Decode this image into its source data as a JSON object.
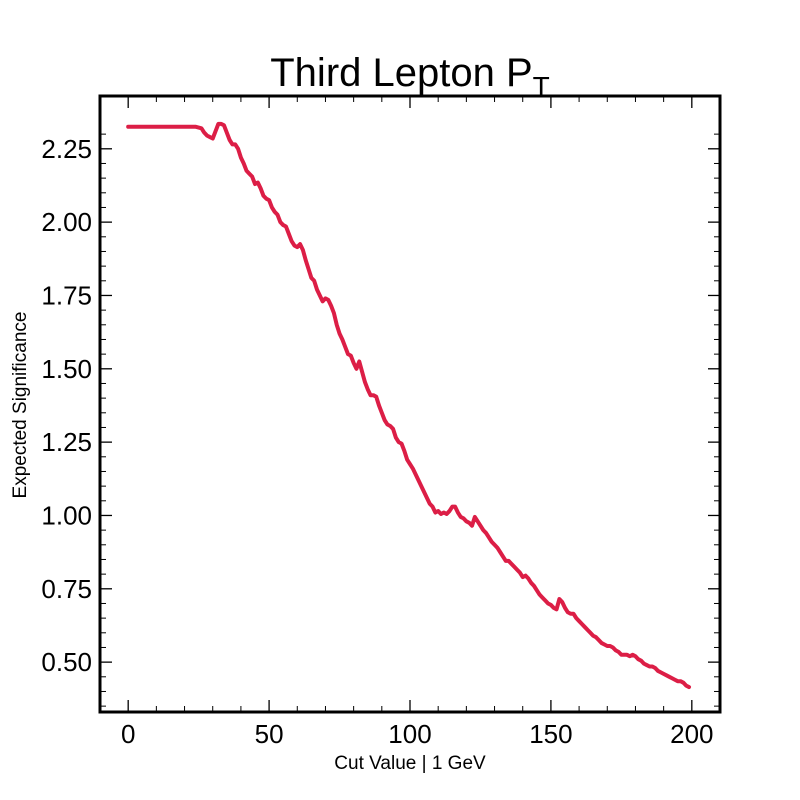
{
  "chart_data": {
    "type": "line",
    "title": "Third Lepton P",
    "title_subscript": "T",
    "xlabel": "Cut Value | 1 GeV",
    "ylabel": "Expected Significance",
    "xlim": [
      -10,
      210
    ],
    "ylim": [
      0.33,
      2.43
    ],
    "xticks": [
      0,
      50,
      100,
      150,
      200
    ],
    "xtick_labels": [
      "0",
      "50",
      "100",
      "150",
      "200"
    ],
    "yticks": [
      0.5,
      0.75,
      1.0,
      1.25,
      1.5,
      1.75,
      2.0,
      2.25
    ],
    "ytick_labels": [
      "0.50",
      "0.75",
      "1.00",
      "1.25",
      "1.50",
      "1.75",
      "2.00",
      "2.25"
    ],
    "grid": false,
    "series": [
      {
        "color": "#dc1e46",
        "x": [
          0,
          5,
          10,
          15,
          20,
          24,
          26,
          27,
          28,
          29,
          30,
          31,
          32,
          33,
          34,
          35,
          36,
          37,
          38,
          39,
          40,
          41,
          42,
          43,
          44,
          45,
          46,
          47,
          48,
          49,
          50,
          51,
          52,
          53,
          54,
          55,
          56,
          57,
          58,
          59,
          60,
          61,
          62,
          63,
          64,
          65,
          66,
          67,
          68,
          69,
          70,
          71,
          72,
          73,
          74,
          75,
          76,
          77,
          78,
          79,
          80,
          81,
          82,
          83,
          84,
          85,
          86,
          87,
          88,
          89,
          90,
          91,
          92,
          93,
          94,
          95,
          96,
          97,
          98,
          99,
          100,
          101,
          102,
          103,
          104,
          105,
          106,
          107,
          108,
          109,
          110,
          111,
          112,
          113,
          114,
          115,
          116,
          117,
          118,
          119,
          120,
          121,
          122,
          123,
          124,
          125,
          126,
          127,
          128,
          129,
          130,
          131,
          132,
          133,
          134,
          135,
          136,
          137,
          138,
          139,
          140,
          141,
          142,
          143,
          144,
          145,
          146,
          147,
          148,
          149,
          150,
          151,
          152,
          153,
          154,
          155,
          156,
          157,
          158,
          159,
          160,
          161,
          162,
          163,
          164,
          165,
          166,
          167,
          168,
          169,
          170,
          171,
          172,
          173,
          174,
          175,
          176,
          177,
          178,
          179,
          180,
          181,
          182,
          183,
          184,
          185,
          186,
          187,
          188,
          189,
          190,
          191,
          192,
          193,
          194,
          195,
          196,
          197,
          198,
          199
        ],
        "y": [
          2.325,
          2.325,
          2.325,
          2.325,
          2.325,
          2.325,
          2.32,
          2.305,
          2.295,
          2.29,
          2.285,
          2.31,
          2.335,
          2.335,
          2.33,
          2.305,
          2.28,
          2.265,
          2.265,
          2.25,
          2.22,
          2.2,
          2.175,
          2.165,
          2.155,
          2.13,
          2.135,
          2.115,
          2.09,
          2.08,
          2.075,
          2.05,
          2.035,
          2.025,
          2.0,
          1.99,
          1.985,
          1.96,
          1.935,
          1.92,
          1.915,
          1.925,
          1.905,
          1.87,
          1.84,
          1.81,
          1.8,
          1.77,
          1.75,
          1.73,
          1.74,
          1.735,
          1.715,
          1.69,
          1.65,
          1.62,
          1.6,
          1.575,
          1.55,
          1.545,
          1.52,
          1.5,
          1.525,
          1.49,
          1.455,
          1.43,
          1.41,
          1.41,
          1.405,
          1.375,
          1.35,
          1.325,
          1.31,
          1.305,
          1.295,
          1.265,
          1.25,
          1.245,
          1.22,
          1.19,
          1.175,
          1.16,
          1.14,
          1.12,
          1.1,
          1.08,
          1.06,
          1.04,
          1.03,
          1.01,
          1.015,
          1.005,
          1.01,
          1.005,
          1.015,
          1.03,
          1.03,
          1.01,
          0.995,
          0.99,
          0.98,
          0.975,
          0.965,
          0.995,
          0.98,
          0.965,
          0.95,
          0.94,
          0.925,
          0.91,
          0.9,
          0.89,
          0.875,
          0.86,
          0.845,
          0.845,
          0.835,
          0.825,
          0.815,
          0.805,
          0.79,
          0.795,
          0.785,
          0.77,
          0.76,
          0.745,
          0.73,
          0.72,
          0.71,
          0.7,
          0.695,
          0.685,
          0.68,
          0.715,
          0.705,
          0.685,
          0.67,
          0.665,
          0.665,
          0.65,
          0.64,
          0.63,
          0.62,
          0.61,
          0.6,
          0.59,
          0.585,
          0.575,
          0.565,
          0.56,
          0.555,
          0.555,
          0.55,
          0.54,
          0.535,
          0.525,
          0.525,
          0.525,
          0.52,
          0.525,
          0.52,
          0.51,
          0.505,
          0.495,
          0.49,
          0.485,
          0.485,
          0.48,
          0.47,
          0.465,
          0.46,
          0.455,
          0.45,
          0.445,
          0.44,
          0.435,
          0.435,
          0.43,
          0.42,
          0.415
        ]
      }
    ]
  }
}
